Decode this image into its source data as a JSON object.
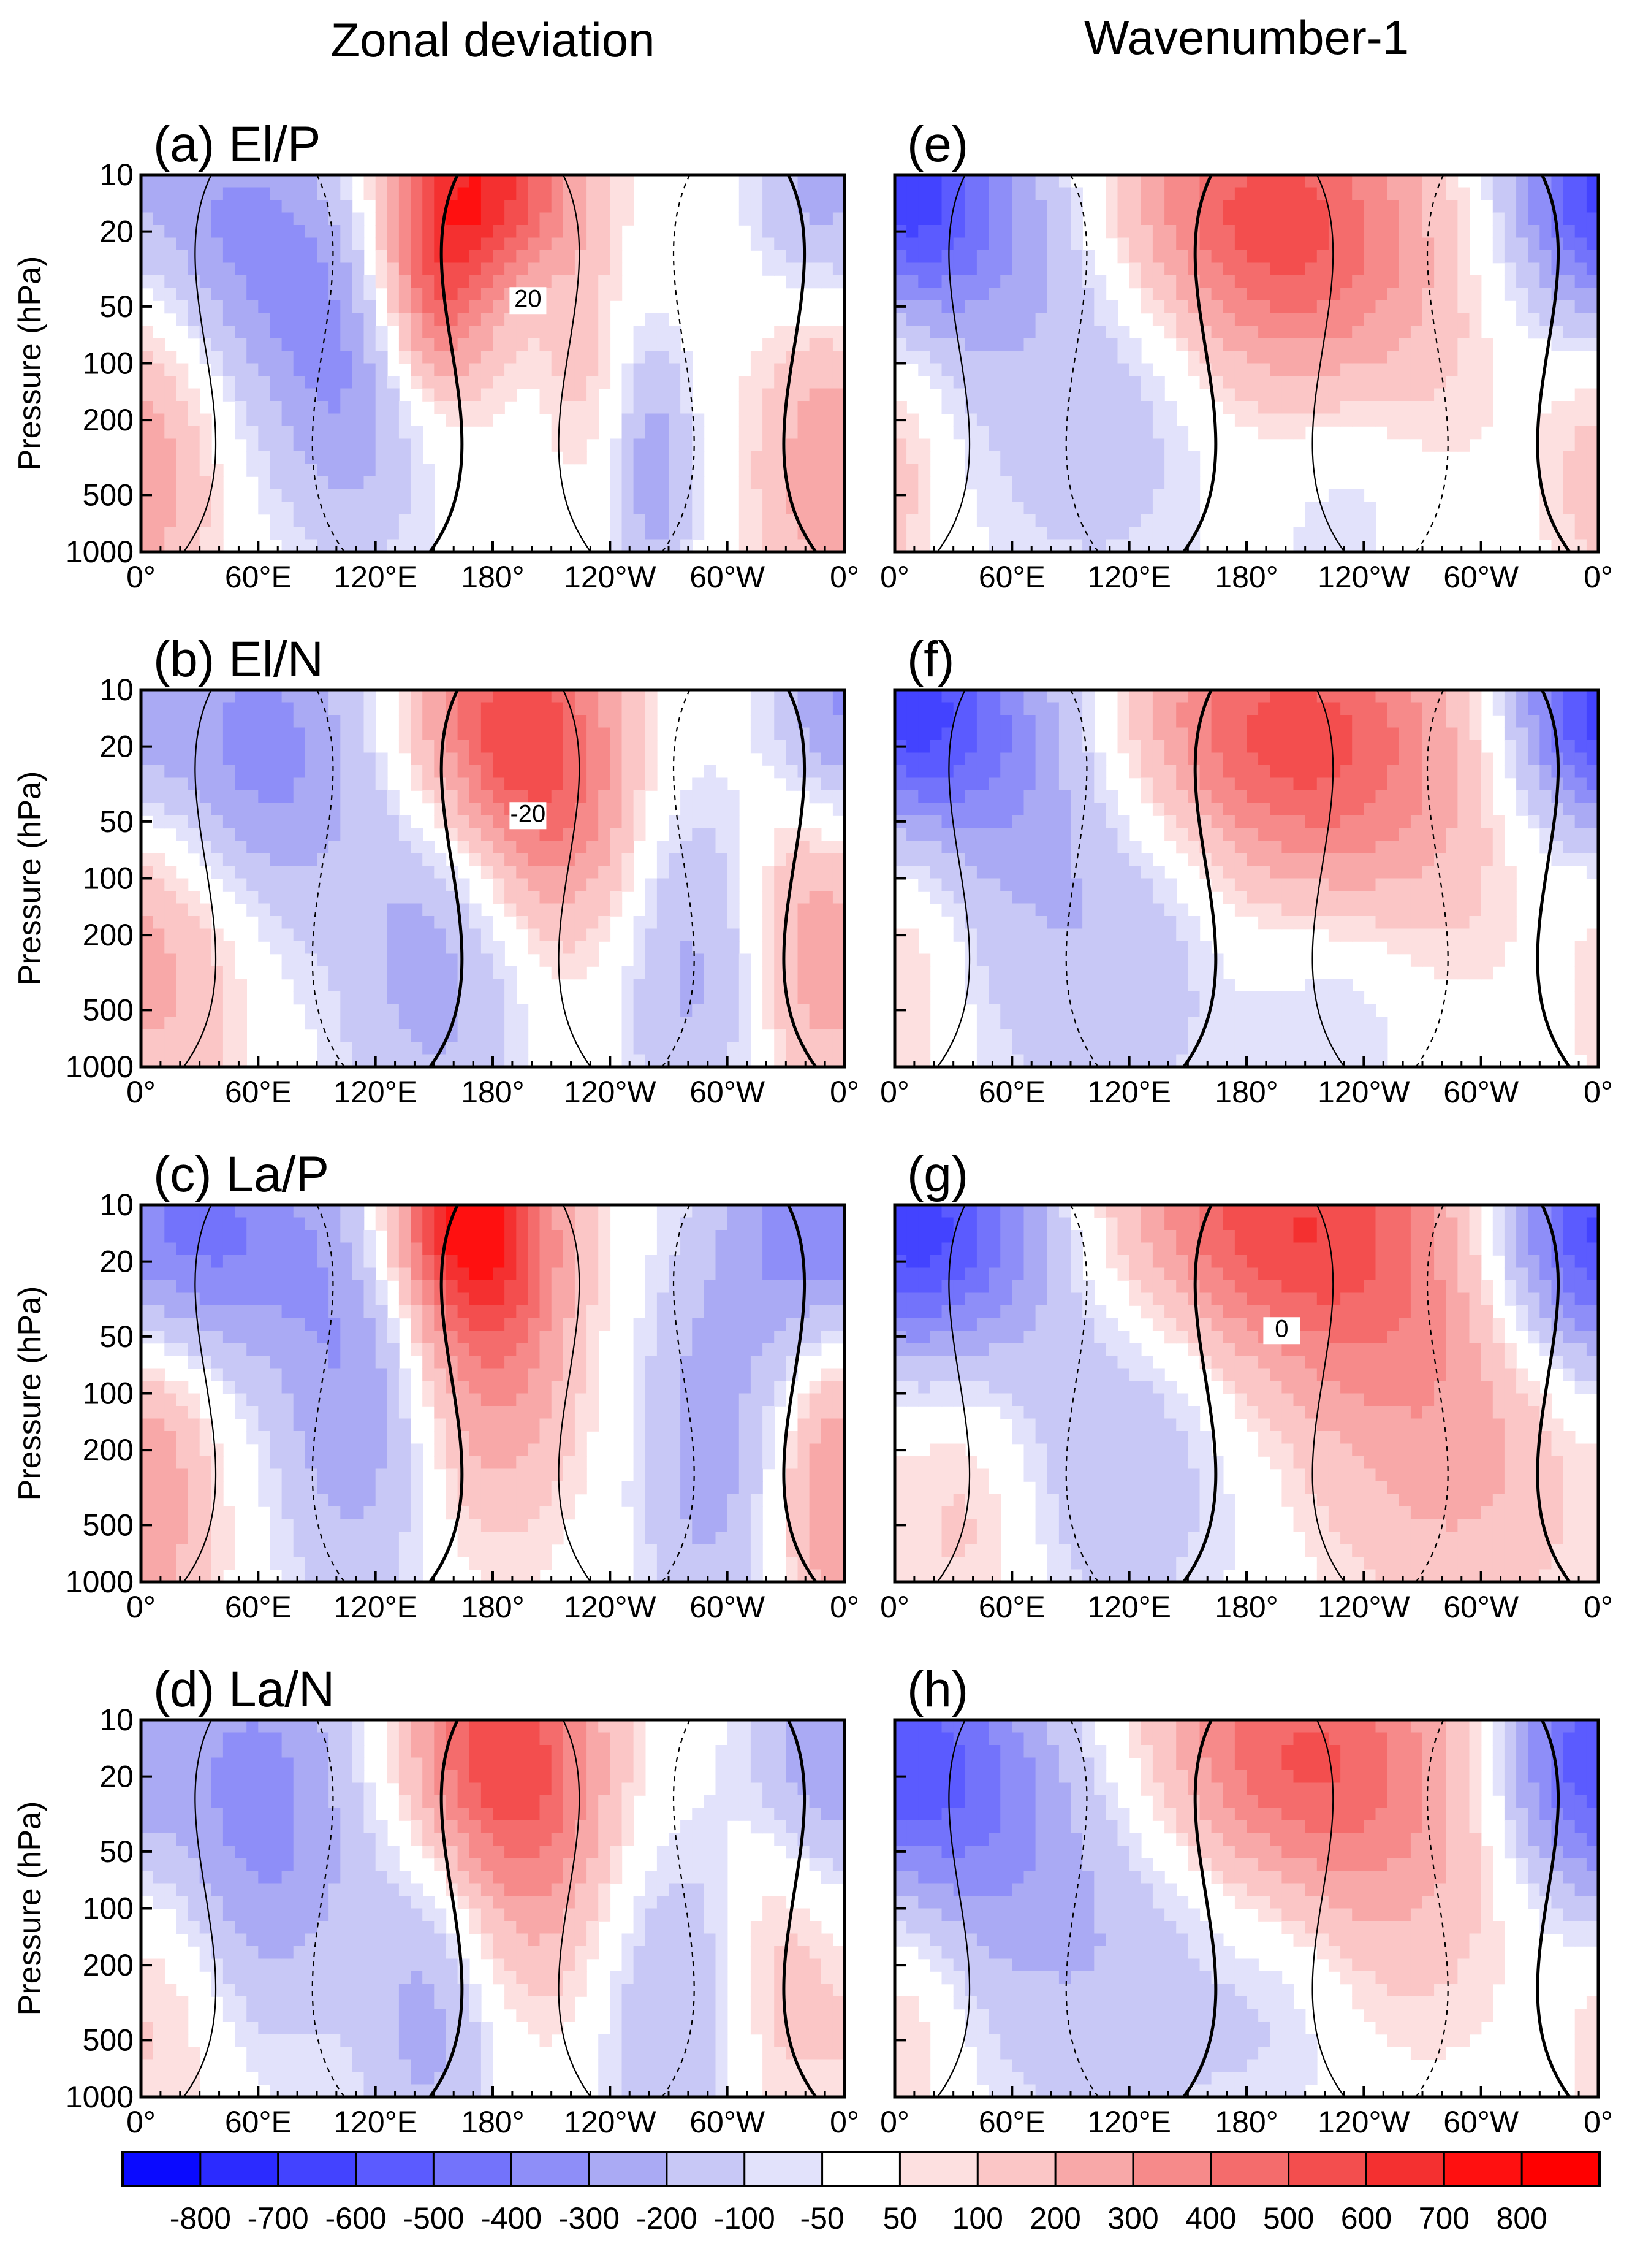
{
  "chart_data": {
    "type": "contour",
    "column_titles": [
      "Zonal deviation",
      "Wavenumber-1"
    ],
    "x_ticks": [
      "0°",
      "60°E",
      "120°E",
      "180°",
      "120°W",
      "60°W",
      "0°"
    ],
    "x_range_deg": [
      0,
      360
    ],
    "y_ticks": [
      10,
      20,
      50,
      100,
      200,
      500,
      1000
    ],
    "y_range_hPa": [
      1000,
      10
    ],
    "y_scale": "log",
    "ylabel": "Pressure  (hPa)",
    "colorbar": {
      "labels": [
        "-800",
        "-700",
        "-600",
        "-500",
        "-400",
        "-300",
        "-200",
        "-100",
        "-50",
        "50",
        "100",
        "200",
        "300",
        "400",
        "500",
        "600",
        "700",
        "800"
      ],
      "colors": [
        "#0a0aff",
        "#2b2bff",
        "#4343ff",
        "#5b5bff",
        "#7373fb",
        "#8e8ef8",
        "#aaaaf4",
        "#c8c8f6",
        "#e2e2fb",
        "#ffffff",
        "#fde0e0",
        "#fbc6c6",
        "#f8a8a8",
        "#f68a8a",
        "#f46c6c",
        "#f34e4e",
        "#f43030",
        "#ff1010",
        "#ff0000"
      ]
    },
    "panels": [
      {
        "id": "a",
        "title": "(a)  El/P",
        "field": "zonal deviation",
        "contour_labels": [
          {
            "text": "20"
          }
        ],
        "blobs": [
          {
            "v": 520,
            "x": 180,
            "p": 11,
            "sx": 32,
            "sy": 0.35
          },
          {
            "v": 300,
            "x": 150,
            "p": 25,
            "sx": 30,
            "sy": 0.5
          },
          {
            "v": 250,
            "x": 150,
            "p": 50,
            "sx": 20,
            "sy": 0.4
          },
          {
            "v": -250,
            "x": 40,
            "p": 15,
            "sx": 30,
            "sy": 0.5
          },
          {
            "v": -220,
            "x": 90,
            "p": 45,
            "sx": 35,
            "sy": 0.6
          },
          {
            "v": -200,
            "x": 110,
            "p": 150,
            "sx": 30,
            "sy": 0.7
          },
          {
            "v": -260,
            "x": 263,
            "p": 400,
            "sx": 14,
            "sy": 0.5
          },
          {
            "v": -200,
            "x": 340,
            "p": 12,
            "sx": 20,
            "sy": 0.4
          },
          {
            "v": 170,
            "x": 5,
            "p": 400,
            "sx": 28,
            "sy": 0.6
          },
          {
            "v": 140,
            "x": 345,
            "p": 350,
            "sx": 25,
            "sy": 0.6
          },
          {
            "v": 120,
            "x": 225,
            "p": 80,
            "sx": 14,
            "sy": 0.5
          }
        ]
      },
      {
        "id": "e",
        "title": "(e)",
        "field": "wavenumber-1",
        "contour_labels": [],
        "blobs": [
          {
            "v": 450,
            "x": 180,
            "p": 15,
            "sx": 55,
            "sy": 0.5
          },
          {
            "v": 250,
            "x": 220,
            "p": 60,
            "sx": 55,
            "sy": 0.7
          },
          {
            "v": -380,
            "x": 20,
            "p": 15,
            "sx": 45,
            "sy": 0.5
          },
          {
            "v": -300,
            "x": 360,
            "p": 12,
            "sx": 30,
            "sy": 0.4
          },
          {
            "v": -200,
            "x": 110,
            "p": 120,
            "sx": 55,
            "sy": 0.8
          },
          {
            "v": -150,
            "x": 230,
            "p": 400,
            "sx": 30,
            "sy": 0.5
          },
          {
            "v": 150,
            "x": 0,
            "p": 350,
            "sx": 20,
            "sy": 0.6
          }
        ]
      },
      {
        "id": "b",
        "title": "(b)  El/N",
        "field": "zonal deviation",
        "contour_labels": [
          {
            "text": "-20"
          }
        ],
        "blobs": [
          {
            "v": 480,
            "x": 180,
            "p": 15,
            "sx": 35,
            "sy": 0.5
          },
          {
            "v": 300,
            "x": 215,
            "p": 40,
            "sx": 30,
            "sy": 0.6
          },
          {
            "v": -350,
            "x": 60,
            "p": 20,
            "sx": 40,
            "sy": 0.6
          },
          {
            "v": -250,
            "x": 150,
            "p": 250,
            "sx": 35,
            "sy": 0.8
          },
          {
            "v": -220,
            "x": 280,
            "p": 300,
            "sx": 25,
            "sy": 0.7
          },
          {
            "v": -250,
            "x": 350,
            "p": 12,
            "sx": 20,
            "sy": 0.4
          },
          {
            "v": 200,
            "x": 20,
            "p": 300,
            "sx": 25,
            "sy": 0.6
          },
          {
            "v": 200,
            "x": 340,
            "p": 200,
            "sx": 20,
            "sy": 0.6
          }
        ]
      },
      {
        "id": "f",
        "title": "(f)",
        "field": "wavenumber-1",
        "contour_labels": [],
        "blobs": [
          {
            "v": 420,
            "x": 190,
            "p": 15,
            "sx": 60,
            "sy": 0.5
          },
          {
            "v": 250,
            "x": 230,
            "p": 50,
            "sx": 60,
            "sy": 0.7
          },
          {
            "v": -400,
            "x": 30,
            "p": 15,
            "sx": 45,
            "sy": 0.5
          },
          {
            "v": -350,
            "x": 355,
            "p": 12,
            "sx": 30,
            "sy": 0.4
          },
          {
            "v": -220,
            "x": 110,
            "p": 150,
            "sx": 60,
            "sy": 0.8
          },
          {
            "v": -150,
            "x": 230,
            "p": 450,
            "sx": 30,
            "sy": 0.5
          },
          {
            "v": 130,
            "x": 10,
            "p": 300,
            "sx": 20,
            "sy": 0.6
          }
        ]
      },
      {
        "id": "c",
        "title": "(c)  La/P",
        "field": "zonal deviation",
        "contour_labels": [],
        "blobs": [
          {
            "v": 600,
            "x": 165,
            "p": 12,
            "sx": 30,
            "sy": 0.4
          },
          {
            "v": 350,
            "x": 180,
            "p": 50,
            "sx": 30,
            "sy": 0.7
          },
          {
            "v": -450,
            "x": 30,
            "p": 14,
            "sx": 40,
            "sy": 0.5
          },
          {
            "v": -300,
            "x": 110,
            "p": 80,
            "sx": 30,
            "sy": 0.9
          },
          {
            "v": -250,
            "x": 290,
            "p": 200,
            "sx": 25,
            "sy": 0.8
          },
          {
            "v": -200,
            "x": 330,
            "p": 15,
            "sx": 25,
            "sy": 0.5
          },
          {
            "v": 200,
            "x": 10,
            "p": 300,
            "sx": 25,
            "sy": 0.8
          },
          {
            "v": 150,
            "x": 350,
            "p": 300,
            "sx": 20,
            "sy": 0.6
          }
        ]
      },
      {
        "id": "g",
        "title": "(g)",
        "field": "wavenumber-1",
        "contour_labels": [
          {
            "text": "0"
          }
        ],
        "blobs": [
          {
            "v": 500,
            "x": 190,
            "p": 12,
            "sx": 60,
            "sy": 0.5
          },
          {
            "v": 250,
            "x": 250,
            "p": 50,
            "sx": 60,
            "sy": 0.8
          },
          {
            "v": -500,
            "x": 25,
            "p": 13,
            "sx": 40,
            "sy": 0.5
          },
          {
            "v": -300,
            "x": 340,
            "p": 15,
            "sx": 35,
            "sy": 0.5
          },
          {
            "v": -200,
            "x": 120,
            "p": 150,
            "sx": 55,
            "sy": 0.8
          },
          {
            "v": 150,
            "x": 40,
            "p": 400,
            "sx": 25,
            "sy": 0.6
          },
          {
            "v": 120,
            "x": 300,
            "p": 300,
            "sx": 40,
            "sy": 0.7
          }
        ]
      },
      {
        "id": "d",
        "title": "(d)  La/N",
        "field": "zonal deviation",
        "contour_labels": [],
        "blobs": [
          {
            "v": 450,
            "x": 180,
            "p": 13,
            "sx": 35,
            "sy": 0.5
          },
          {
            "v": 250,
            "x": 200,
            "p": 50,
            "sx": 35,
            "sy": 0.7
          },
          {
            "v": -350,
            "x": 60,
            "p": 30,
            "sx": 40,
            "sy": 0.8
          },
          {
            "v": -250,
            "x": 150,
            "p": 350,
            "sx": 25,
            "sy": 0.7
          },
          {
            "v": -200,
            "x": 270,
            "p": 300,
            "sx": 30,
            "sy": 0.7
          },
          {
            "v": -250,
            "x": 345,
            "p": 13,
            "sx": 25,
            "sy": 0.5
          },
          {
            "v": 150,
            "x": 15,
            "p": 300,
            "sx": 25,
            "sy": 0.6
          },
          {
            "v": 150,
            "x": 325,
            "p": 200,
            "sx": 20,
            "sy": 0.6
          }
        ]
      },
      {
        "id": "h",
        "title": "(h)",
        "field": "wavenumber-1",
        "contour_labels": [],
        "blobs": [
          {
            "v": 400,
            "x": 200,
            "p": 13,
            "sx": 55,
            "sy": 0.5
          },
          {
            "v": 220,
            "x": 240,
            "p": 50,
            "sx": 60,
            "sy": 0.7
          },
          {
            "v": -400,
            "x": 30,
            "p": 20,
            "sx": 40,
            "sy": 0.6
          },
          {
            "v": -350,
            "x": 345,
            "p": 15,
            "sx": 30,
            "sy": 0.5
          },
          {
            "v": -200,
            "x": 110,
            "p": 150,
            "sx": 55,
            "sy": 0.8
          },
          {
            "v": -120,
            "x": 200,
            "p": 300,
            "sx": 30,
            "sy": 0.5
          },
          {
            "v": 130,
            "x": 10,
            "p": 350,
            "sx": 20,
            "sy": 0.6
          }
        ]
      }
    ]
  }
}
